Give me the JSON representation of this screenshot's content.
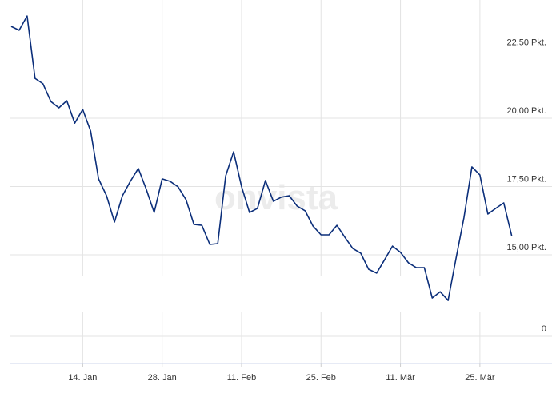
{
  "chart_data": {
    "type": "line",
    "watermark": "onvista",
    "categories": [
      null,
      null,
      null,
      null,
      null,
      null,
      null,
      null,
      null,
      "14. Jan",
      null,
      null,
      null,
      null,
      null,
      null,
      null,
      null,
      null,
      "28. Jan",
      null,
      null,
      null,
      null,
      null,
      null,
      null,
      null,
      null,
      "11. Feb",
      null,
      null,
      null,
      null,
      null,
      null,
      null,
      null,
      null,
      "25. Feb",
      null,
      null,
      null,
      null,
      null,
      null,
      null,
      null,
      null,
      "11. Mär",
      null,
      null,
      null,
      null,
      null,
      null,
      null,
      null,
      null,
      "25. Mär",
      null,
      null,
      null,
      null
    ],
    "series": [
      {
        "color": "#0b2e7a",
        "values": [
          23.36,
          23.22,
          23.74,
          21.46,
          21.26,
          20.61,
          20.38,
          20.64,
          19.82,
          20.32,
          19.53,
          17.78,
          17.16,
          16.2,
          17.16,
          17.69,
          18.16,
          17.4,
          16.55,
          17.78,
          17.69,
          17.49,
          17.02,
          16.11,
          16.08,
          15.38,
          15.41,
          17.89,
          18.77,
          17.49,
          16.55,
          16.7,
          17.72,
          16.96,
          17.11,
          17.16,
          16.78,
          16.61,
          16.05,
          15.73,
          15.73,
          16.08,
          15.64,
          15.23,
          15.06,
          14.47,
          14.33,
          14.82,
          15.32,
          15.09,
          14.71,
          14.53,
          14.53,
          13.42,
          13.65,
          13.33,
          14.88,
          16.37,
          18.22,
          17.92,
          16.49,
          16.7,
          16.9,
          15.7
        ]
      }
    ],
    "ylim": [
      13,
      24
    ],
    "yticks": [
      {
        "value": 22.5,
        "label": "22,50 Pkt."
      },
      {
        "value": 20,
        "label": "20,00 Pkt."
      },
      {
        "value": 17.5,
        "label": "17,50 Pkt."
      },
      {
        "value": 15,
        "label": "15,00 Pkt."
      },
      0
    ],
    "grid": true
  }
}
